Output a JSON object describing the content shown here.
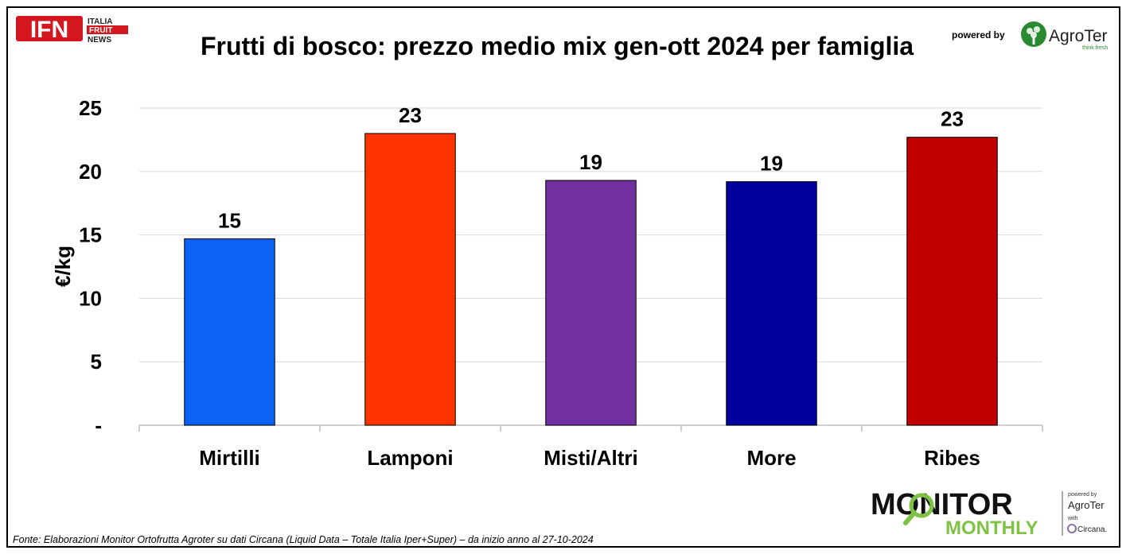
{
  "header": {
    "title": "Frutti di bosco: prezzo medio mix gen-ott 2024 per famiglia",
    "ifn_logo": {
      "letters": "IFN",
      "line1": "ITALIA",
      "line2": "FRUIT",
      "line3": "NEWS",
      "color": "#d2171e"
    },
    "powered_by": "powered by",
    "agroter_logo": {
      "name": "AgroTer",
      "tagline": "think fresh",
      "color": "#2a8a2f"
    }
  },
  "footer": {
    "source": "Fonte: Elaborazioni Monitor Ortofrutta Agroter su dati Circana (Liquid Data – Totale Italia Iper+Super) –  da inizio anno al 27-10-2024",
    "monitor_logo": {
      "word1": "MONITOR",
      "word2": "MONTHLY",
      "powered_by": "powered by",
      "agroter": "AgroTer",
      "with": "with",
      "circana": "Circana.",
      "accent_color": "#7dc242"
    }
  },
  "chart_data": {
    "type": "bar",
    "title": "Frutti di bosco: prezzo medio mix gen-ott 2024 per famiglia",
    "xlabel": "",
    "ylabel": "€/kg",
    "categories": [
      "Mirtilli",
      "Lamponi",
      "Misti/Altri",
      "More",
      "Ribes"
    ],
    "values": [
      14.7,
      23.0,
      19.3,
      19.2,
      22.7
    ],
    "data_labels": [
      "15",
      "23",
      "19",
      "19",
      "23"
    ],
    "colors": [
      "#0b62f4",
      "#ff3300",
      "#7030a0",
      "#00009e",
      "#c00000"
    ],
    "ylim": [
      0,
      25
    ],
    "yticks": [
      0,
      5,
      10,
      15,
      20,
      25
    ],
    "ytick_labels": [
      "-",
      "5",
      "10",
      "15",
      "20",
      "25"
    ],
    "grid": true,
    "legend": "none"
  }
}
